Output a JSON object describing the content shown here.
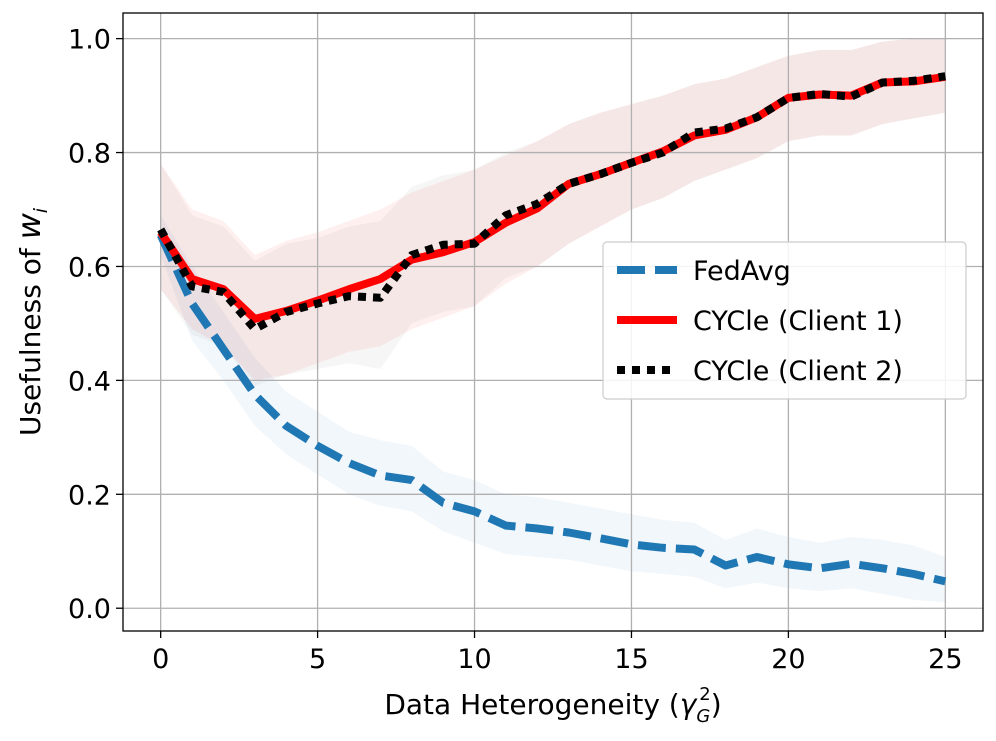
{
  "chart_data": {
    "type": "line",
    "title": "",
    "xlabel_main": "Data Heterogeneity (",
    "xlabel_symbol": "γ",
    "xlabel_sub": "G",
    "xlabel_sup": "2",
    "xlabel_close": ")",
    "ylabel_main": "Usefulness of ",
    "ylabel_symbol": "w",
    "ylabel_sub": "i",
    "xlim": [
      -1.2,
      26.2
    ],
    "ylim": [
      -0.04,
      1.045
    ],
    "xticks": [
      0,
      5,
      10,
      15,
      20,
      25
    ],
    "yticks": [
      0.0,
      0.2,
      0.4,
      0.6,
      0.8,
      1.0
    ],
    "xtick_labels": [
      "0",
      "5",
      "10",
      "15",
      "20",
      "25"
    ],
    "ytick_labels": [
      "0.0",
      "0.2",
      "0.4",
      "0.6",
      "0.8",
      "1.0"
    ],
    "grid": true,
    "legend_position": "center-right",
    "x": [
      0,
      1,
      2,
      3,
      4,
      5,
      6,
      7,
      8,
      9,
      10,
      11,
      12,
      13,
      14,
      15,
      16,
      17,
      18,
      19,
      20,
      21,
      22,
      23,
      24,
      25
    ],
    "series": [
      {
        "name": "FedAvg",
        "color": "#1f77b4",
        "style": "dashed",
        "values": [
          0.655,
          0.535,
          0.455,
          0.375,
          0.32,
          0.285,
          0.255,
          0.233,
          0.225,
          0.185,
          0.17,
          0.145,
          0.14,
          0.133,
          0.123,
          0.112,
          0.106,
          0.103,
          0.075,
          0.09,
          0.077,
          0.07,
          0.078,
          0.07,
          0.06,
          0.047
        ],
        "band_lower": [
          0.62,
          0.47,
          0.4,
          0.32,
          0.27,
          0.235,
          0.2,
          0.18,
          0.17,
          0.135,
          0.115,
          0.095,
          0.09,
          0.085,
          0.075,
          0.065,
          0.06,
          0.055,
          0.035,
          0.045,
          0.035,
          0.03,
          0.035,
          0.025,
          0.015,
          0.01
        ],
        "band_upper": [
          0.69,
          0.6,
          0.52,
          0.44,
          0.38,
          0.345,
          0.31,
          0.295,
          0.285,
          0.24,
          0.225,
          0.2,
          0.195,
          0.185,
          0.175,
          0.165,
          0.155,
          0.15,
          0.12,
          0.14,
          0.125,
          0.115,
          0.125,
          0.12,
          0.11,
          0.09
        ]
      },
      {
        "name": "CYCle (Client 1)",
        "color": "#ff0000",
        "style": "solid",
        "values": [
          0.66,
          0.578,
          0.56,
          0.508,
          0.522,
          0.54,
          0.56,
          0.578,
          0.612,
          0.625,
          0.643,
          0.677,
          0.702,
          0.745,
          0.762,
          0.782,
          0.802,
          0.83,
          0.84,
          0.862,
          0.896,
          0.902,
          0.9,
          0.923,
          0.925,
          0.933
        ],
        "band_lower": [
          0.56,
          0.49,
          0.46,
          0.4,
          0.41,
          0.43,
          0.45,
          0.46,
          0.49,
          0.51,
          0.53,
          0.57,
          0.6,
          0.64,
          0.67,
          0.7,
          0.72,
          0.75,
          0.77,
          0.79,
          0.82,
          0.83,
          0.83,
          0.85,
          0.86,
          0.87
        ],
        "band_upper": [
          0.78,
          0.7,
          0.68,
          0.62,
          0.645,
          0.66,
          0.68,
          0.7,
          0.73,
          0.75,
          0.77,
          0.795,
          0.82,
          0.85,
          0.87,
          0.885,
          0.9,
          0.92,
          0.93,
          0.95,
          0.97,
          0.98,
          0.98,
          0.995,
          1.0,
          1.0
        ]
      },
      {
        "name": "CYCle (Client 2)",
        "color": "#000000",
        "style": "dotted",
        "values": [
          0.665,
          0.565,
          0.555,
          0.49,
          0.52,
          0.535,
          0.548,
          0.545,
          0.62,
          0.638,
          0.64,
          0.69,
          0.71,
          0.745,
          0.762,
          0.782,
          0.8,
          0.835,
          0.842,
          0.862,
          0.896,
          0.903,
          0.898,
          0.923,
          0.926,
          0.934
        ],
        "band_lower": [
          0.56,
          0.48,
          0.46,
          0.39,
          0.41,
          0.42,
          0.43,
          0.42,
          0.5,
          0.52,
          0.53,
          0.58,
          0.6,
          0.64,
          0.67,
          0.7,
          0.72,
          0.75,
          0.77,
          0.79,
          0.82,
          0.83,
          0.83,
          0.85,
          0.86,
          0.87
        ],
        "band_upper": [
          0.78,
          0.69,
          0.67,
          0.61,
          0.64,
          0.65,
          0.67,
          0.68,
          0.74,
          0.76,
          0.77,
          0.8,
          0.82,
          0.85,
          0.87,
          0.885,
          0.9,
          0.92,
          0.93,
          0.95,
          0.97,
          0.98,
          0.98,
          0.995,
          1.0,
          1.0
        ]
      }
    ]
  }
}
